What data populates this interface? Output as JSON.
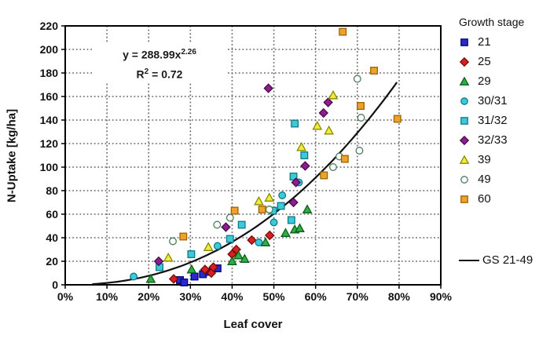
{
  "chart_data": {
    "type": "scatter",
    "xlabel": "Leaf cover",
    "ylabel": "N-Uptake [kg/ha]",
    "x_axis": {
      "min_pct": 0,
      "max_pct": 90,
      "tick_step_pct": 10,
      "tick_labels": [
        "0%",
        "10%",
        "20%",
        "30%",
        "40%",
        "50%",
        "60%",
        "70%",
        "80%",
        "90%"
      ]
    },
    "y_axis": {
      "min": 0,
      "max": 220,
      "tick_step": 20,
      "tick_labels": [
        "0",
        "20",
        "40",
        "60",
        "80",
        "100",
        "120",
        "140",
        "160",
        "180",
        "200",
        "220"
      ]
    },
    "grid": {
      "style": "dotted",
      "horizontal": true,
      "vertical": true,
      "color": "#666666"
    },
    "annotation": {
      "eq_base": "y = 288.99x",
      "eq_exp": "2.26",
      "r2_pre": "R",
      "r2_exp": "2",
      "r2_post": " = 0.72"
    },
    "legend_title": "Growth stage",
    "series": [
      {
        "name": "21",
        "marker": "square",
        "fill": "#2a2ac8",
        "stroke": "#000080",
        "points_pct_kgha": [
          [
            27.5,
            4
          ],
          [
            28.5,
            2
          ],
          [
            31,
            7
          ],
          [
            33,
            9
          ],
          [
            34.5,
            11
          ],
          [
            36.5,
            14
          ]
        ]
      },
      {
        "name": "25",
        "marker": "diamond",
        "fill": "#d42222",
        "stroke": "#7c0606",
        "points_pct_kgha": [
          [
            26,
            5
          ],
          [
            33.5,
            13
          ],
          [
            35,
            10
          ],
          [
            35.5,
            15
          ],
          [
            40,
            26
          ],
          [
            41,
            30
          ],
          [
            44.7,
            38
          ],
          [
            49,
            42
          ]
        ]
      },
      {
        "name": "29",
        "marker": "triangle",
        "fill": "#2fae42",
        "stroke": "#0c5e1e",
        "points_pct_kgha": [
          [
            20.5,
            5
          ],
          [
            30.3,
            13
          ],
          [
            40,
            20
          ],
          [
            41.5,
            25
          ],
          [
            43,
            22
          ],
          [
            48,
            36
          ],
          [
            52.8,
            44
          ],
          [
            55,
            47
          ],
          [
            56.2,
            48
          ],
          [
            58,
            64
          ]
        ]
      },
      {
        "name": "30/31",
        "marker": "circle",
        "fill": "#3ec9d6",
        "stroke": "#0b7a8a",
        "points_pct_kgha": [
          [
            16.4,
            7
          ],
          [
            36.5,
            33
          ],
          [
            46.4,
            36
          ],
          [
            50,
            53
          ],
          [
            52,
            76
          ],
          [
            56,
            87
          ]
        ]
      },
      {
        "name": "31/32",
        "marker": "square",
        "fill": "#3ec9d6",
        "stroke": "#0b7a8a",
        "points_pct_kgha": [
          [
            22.6,
            15
          ],
          [
            30.2,
            26
          ],
          [
            39.5,
            39
          ],
          [
            42.3,
            51
          ],
          [
            49.8,
            63
          ],
          [
            51.7,
            67
          ],
          [
            54.2,
            55
          ],
          [
            54.7,
            92
          ],
          [
            55,
            137
          ],
          [
            57.3,
            110
          ]
        ]
      },
      {
        "name": "32/33",
        "marker": "diamond",
        "fill": "#8c1f8c",
        "stroke": "#4a0a4a",
        "points_pct_kgha": [
          [
            22.4,
            20
          ],
          [
            38.5,
            49
          ],
          [
            48.7,
            167
          ],
          [
            54.7,
            70
          ],
          [
            55.3,
            87
          ],
          [
            57.5,
            101
          ],
          [
            61.9,
            146
          ],
          [
            63,
            155
          ]
        ]
      },
      {
        "name": "39",
        "marker": "triangle",
        "fill": "#efec3e",
        "stroke": "#8a8a00",
        "points_pct_kgha": [
          [
            24.7,
            23
          ],
          [
            34.3,
            32
          ],
          [
            46.4,
            71
          ],
          [
            48.9,
            74
          ],
          [
            56.6,
            117
          ],
          [
            60.4,
            135
          ],
          [
            63.2,
            131
          ],
          [
            64.2,
            161
          ]
        ]
      },
      {
        "name": "49",
        "marker": "circle",
        "fill": "#fbfffb",
        "stroke": "#4f7a5f",
        "points_pct_kgha": [
          [
            25.8,
            37
          ],
          [
            36.4,
            51
          ],
          [
            39.5,
            57
          ],
          [
            48.9,
            64
          ],
          [
            64.2,
            100
          ],
          [
            65.7,
            109
          ],
          [
            70,
            175
          ],
          [
            70.5,
            114
          ],
          [
            70.9,
            142
          ]
        ]
      },
      {
        "name": "60",
        "marker": "square",
        "fill": "#efa12d",
        "stroke": "#9a6500",
        "points_pct_kgha": [
          [
            28.3,
            41
          ],
          [
            40.6,
            63
          ],
          [
            47.2,
            64
          ],
          [
            62,
            93
          ],
          [
            66.5,
            215
          ],
          [
            67,
            107
          ],
          [
            70.8,
            152
          ],
          [
            74,
            182
          ],
          [
            79.6,
            141
          ]
        ]
      }
    ],
    "trendline": {
      "label": "GS 21-49",
      "formula_coef_a": 288.99,
      "formula_exp_b": 2.26,
      "x_draw_range_pct": [
        6.5,
        80
      ],
      "color": "#111111"
    }
  }
}
